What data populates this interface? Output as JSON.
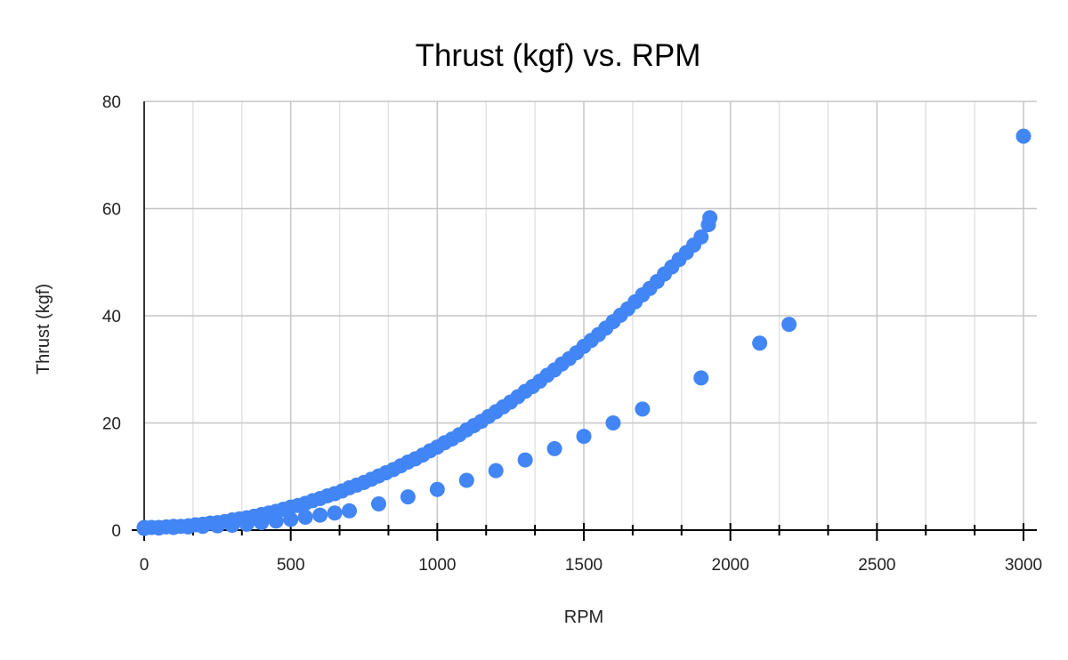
{
  "chart_data": {
    "type": "scatter",
    "title": "Thrust (kgf) vs. RPM",
    "xlabel": "RPM",
    "ylabel": "Thrust (kgf)",
    "xlim": [
      0,
      3000
    ],
    "ylim": [
      0,
      80
    ],
    "xticks": [
      "0",
      "500",
      "1000",
      "1500",
      "2000",
      "2500",
      "3000"
    ],
    "yticks": [
      "0",
      "20",
      "40",
      "60",
      "80"
    ],
    "grid": true,
    "legend": "none",
    "color": "#4285f4",
    "series": [
      {
        "x": [
          0,
          25,
          50,
          75,
          100,
          125,
          150,
          175,
          200,
          225,
          250,
          275,
          300,
          325,
          350,
          375,
          400,
          425,
          450,
          475,
          500,
          525,
          550,
          575,
          600,
          625,
          650,
          675,
          700,
          725,
          750,
          775,
          800,
          825,
          850,
          875,
          900,
          925,
          950,
          975,
          1000,
          1025,
          1050,
          1075,
          1100,
          1125,
          1150,
          1175,
          1200,
          1225,
          1250,
          1275,
          1300,
          1325,
          1350,
          1375,
          1400,
          1425,
          1450,
          1475,
          1500,
          1525,
          1550,
          1575,
          1600,
          1625,
          1650,
          1675,
          1700,
          1725,
          1750,
          1775,
          1800,
          1825,
          1850,
          1875,
          1900,
          1925,
          1930
        ],
        "y": [
          0.5,
          0.5,
          0.5,
          0.6,
          0.7,
          0.7,
          0.8,
          1.0,
          1.1,
          1.3,
          1.4,
          1.6,
          1.9,
          2.1,
          2.3,
          2.6,
          2.9,
          3.2,
          3.5,
          3.9,
          4.3,
          4.6,
          5.0,
          5.5,
          5.9,
          6.4,
          6.8,
          7.3,
          7.9,
          8.4,
          8.9,
          9.5,
          10.1,
          10.7,
          11.3,
          12.0,
          12.7,
          13.3,
          14.0,
          14.8,
          15.5,
          16.3,
          17.0,
          17.8,
          18.7,
          19.5,
          20.3,
          21.2,
          22.1,
          23.0,
          23.9,
          24.9,
          25.9,
          26.8,
          27.8,
          28.9,
          29.9,
          31.0,
          32.0,
          33.1,
          34.3,
          35.4,
          36.5,
          37.7,
          38.9,
          40.1,
          41.3,
          42.6,
          43.9,
          45.1,
          46.4,
          47.8,
          49.1,
          50.5,
          51.8,
          53.2,
          54.7,
          57.0,
          58.3
        ]
      },
      {
        "x": [
          0,
          50,
          100,
          150,
          200,
          250,
          300,
          350,
          400,
          450,
          500,
          550,
          600,
          650,
          700,
          800,
          900,
          1000,
          1100,
          1200,
          1300,
          1400,
          1500,
          1600,
          1700,
          1900,
          2100,
          2200,
          3000
        ],
        "y": [
          0.3,
          0.4,
          0.5,
          0.6,
          0.7,
          0.8,
          0.9,
          1.1,
          1.4,
          1.7,
          2.0,
          2.4,
          2.8,
          3.2,
          3.6,
          4.9,
          6.2,
          7.6,
          9.3,
          11.1,
          13.1,
          15.2,
          17.5,
          20.0,
          22.6,
          28.4,
          34.9,
          38.4,
          73.5
        ]
      }
    ]
  }
}
